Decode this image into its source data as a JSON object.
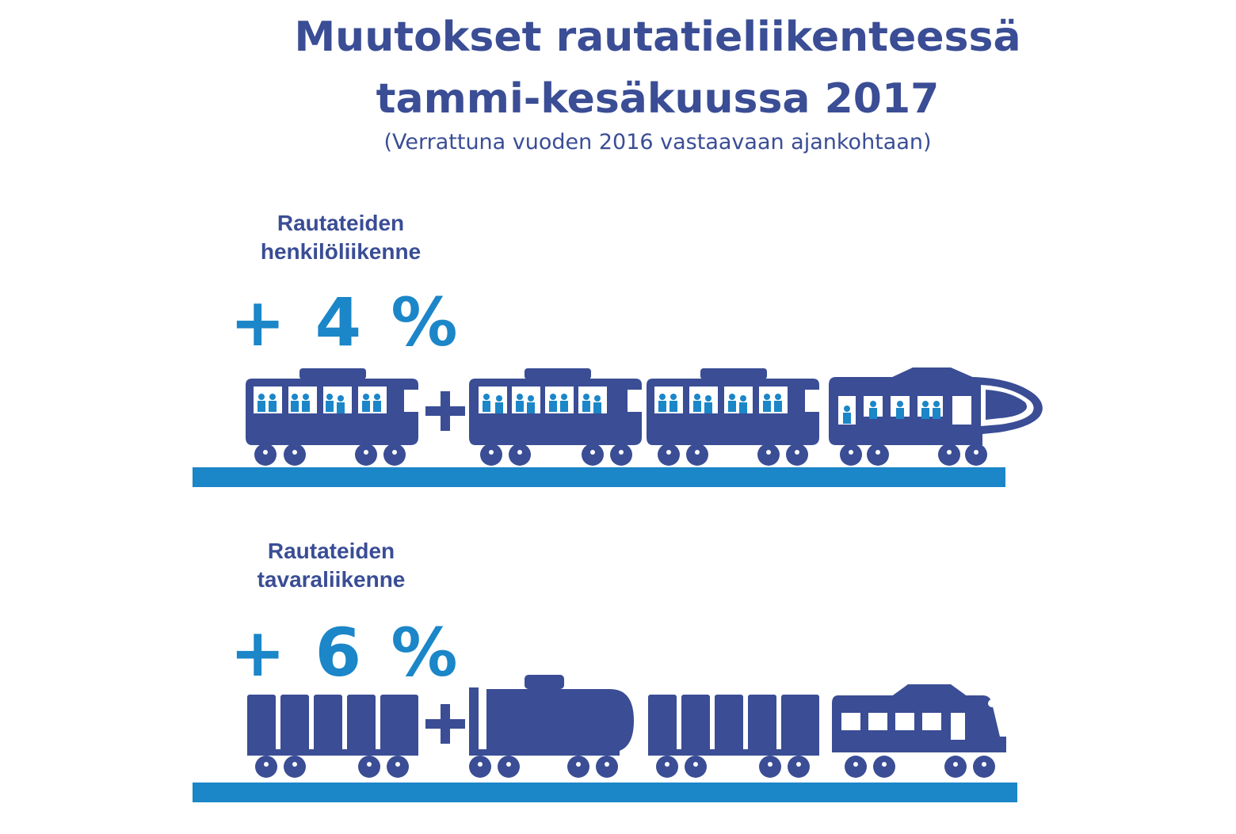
{
  "title": {
    "line1": "Muutokset rautatieliikenteessä",
    "line2": "tammi-kesäkuussa 2017",
    "subtitle": "(Verrattuna vuoden 2016 vastaavaan ajankohtaan)"
  },
  "passenger": {
    "label_line1": "Rautateiden",
    "label_line2": "henkilöliikenne",
    "change": "+ 4 %"
  },
  "freight": {
    "label_line1": "Rautateiden",
    "label_line2": "tavaraliikenne",
    "change": "+ 6 %"
  },
  "colors": {
    "navy": "#3a4d95",
    "accent": "#1b86c8"
  },
  "icons": {
    "passenger_train": "passenger-train-icon",
    "freight_train": "freight-train-icon",
    "plus": "plus-icon"
  }
}
